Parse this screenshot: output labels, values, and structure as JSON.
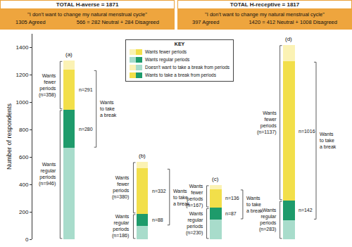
{
  "chart_data": {
    "type": "bar",
    "stacked": true,
    "grid": false,
    "tick_labels": "y",
    "header": [
      {
        "total": "TOTAL H-averse = 1871",
        "quote": "\"I don't want to change my natural menstrual cycle\"",
        "agreed": "1305 Agreed",
        "other": "566 = 282 Neutral + 284 Disagreed"
      },
      {
        "total": "TOTAL H-receptive = 1817",
        "quote": "\"I don't want to change my natural menstrual cycle\"",
        "agreed": "397 Agreed",
        "other": "1420 = 412 Neutral + 1008 Disagreed"
      }
    ],
    "ylabel": "Number of respondents",
    "categories": [
      "(a)",
      "(b)",
      "(c)",
      "(d)"
    ],
    "ylim": [
      0,
      1500
    ],
    "yticks": [
      0,
      200,
      400,
      600,
      800,
      1000,
      1200,
      1400
    ],
    "data_labels": true,
    "series": [
      {
        "color": "#a8dccb",
        "values": [
          666,
          98,
          143,
          141
        ]
      },
      {
        "color": "#1e9b6b",
        "values": [
          280,
          88,
          87,
          142
        ],
        "value_labels": [
          "n=280",
          "n=88",
          "n=87",
          "n=142"
        ]
      },
      {
        "color": "#f2df4a",
        "values": [
          291,
          332,
          136,
          1016
        ],
        "value_labels": [
          "n=291",
          "n=332",
          "n=136",
          "n=1016"
        ]
      },
      {
        "color": "#fbf2b4",
        "values": [
          67,
          48,
          31,
          121
        ]
      }
    ],
    "brackets": [
      {
        "label": "Wants\nfewer\nperiods",
        "side": "left",
        "segments": [
          2,
          3
        ],
        "values": [
          358,
          380,
          167,
          1137
        ],
        "value_labels": [
          "(n=358)",
          "(n=380)",
          "(n=167)",
          "(n=1137)"
        ]
      },
      {
        "label": "Wants\nregular\nperiods",
        "side": "left",
        "segments": [
          0,
          1
        ],
        "values": [
          946,
          186,
          230,
          283
        ],
        "value_labels": [
          "(n=946)",
          "(n=186)",
          "(n=230)",
          "(n=283)"
        ]
      },
      {
        "label": "Wants\nto take\na break",
        "side": "right",
        "segments": [
          1,
          2
        ]
      }
    ],
    "key": {
      "title": "KEY",
      "entries": [
        {
          "label": "Wants fewer periods",
          "colors": [
            "#fbf2b4",
            "#f2df4a"
          ]
        },
        {
          "label": "Wants regular periods",
          "colors": [
            "#a8dccb",
            "#1e9b6b"
          ]
        },
        {
          "label": "Doesn't want to take a break from periods",
          "colors": [
            "#fbf2b4",
            "#a8dccb"
          ]
        },
        {
          "label": "Wants to take a break from periods",
          "colors": [
            "#f2df4a",
            "#1e9b6b"
          ]
        }
      ]
    }
  }
}
